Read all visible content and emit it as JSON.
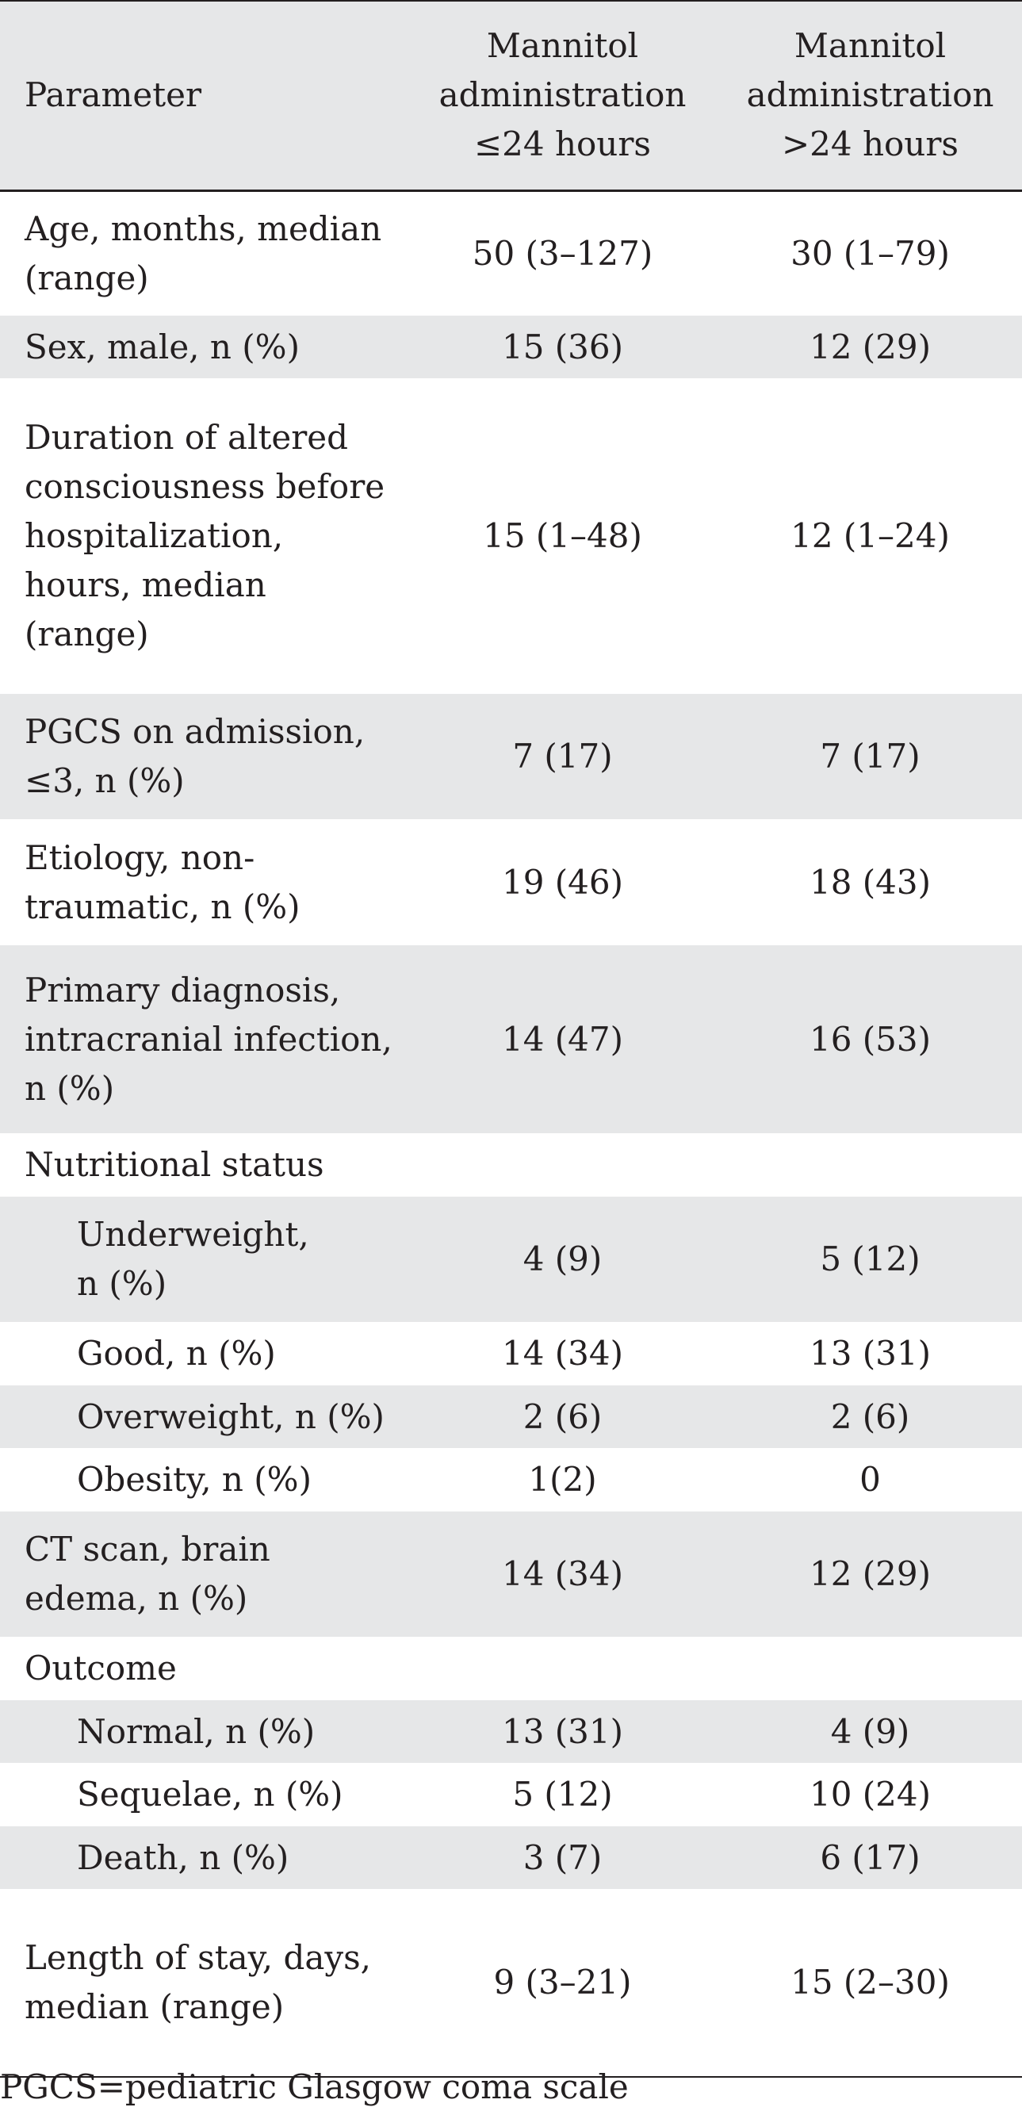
{
  "header": {
    "col1": "Parameter",
    "col2": "Mannitol administration ≤24 hours",
    "col3": "Mannitol administration >24 hours"
  },
  "rows": [
    {
      "label": "Age, months, median (range)",
      "v1": "50 (3–127)",
      "v2": "30 (1–79)"
    },
    {
      "label": "Sex, male, n (%)",
      "v1": "15 (36)",
      "v2": "12 (29)"
    },
    {
      "label": "Duration of altered consciousness before hospitalization, hours, median (range)",
      "v1": "15 (1–48)",
      "v2": "12 (1–24)"
    },
    {
      "label": "PGCS on admission, ≤3, n (%)",
      "v1": "7 (17)",
      "v2": "7 (17)"
    },
    {
      "label": "Etiology, non-traumatic, n (%)",
      "v1": "19 (46)",
      "v2": "18 (43)"
    },
    {
      "label": "Primary diagnosis, intracranial infection, n (%)",
      "v1": "14 (47)",
      "v2": "16 (53)"
    },
    {
      "label": "Nutritional status",
      "v1": "",
      "v2": ""
    },
    {
      "label": "Underweight, n (%)",
      "v1": "4 (9)",
      "v2": "5 (12)"
    },
    {
      "label": "Good, n (%)",
      "v1": "14 (34)",
      "v2": "13 (31)"
    },
    {
      "label": "Overweight, n (%)",
      "v1": "2 (6)",
      "v2": "2 (6)"
    },
    {
      "label": "Obesity, n (%)",
      "v1": "1(2)",
      "v2": "0"
    },
    {
      "label": "CT scan, brain edema, n (%)",
      "v1": "14 (34)",
      "v2": "12 (29)"
    },
    {
      "label": "Outcome",
      "v1": "",
      "v2": ""
    },
    {
      "label": "Normal, n (%)",
      "v1": "13 (31)",
      "v2": "4 (9)"
    },
    {
      "label": "Sequelae, n (%)",
      "v1": "5 (12)",
      "v2": "10 (24)"
    },
    {
      "label": "Death, n (%)",
      "v1": "3 (7)",
      "v2": "6 (17)"
    },
    {
      "label": "Length of stay, days, median (range)",
      "v1": "9 (3–21)",
      "v2": "15 (2–30)"
    }
  ],
  "footnote": "PGCS=pediatric Glasgow coma scale"
}
